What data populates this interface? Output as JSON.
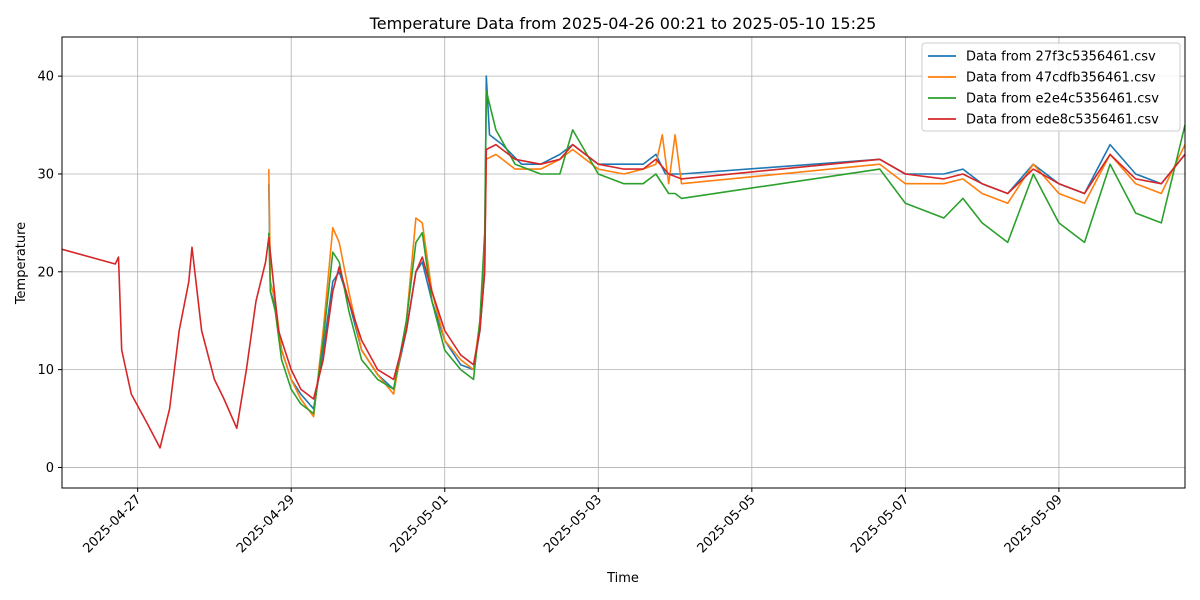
{
  "chart_data": {
    "type": "line",
    "title": "Temperature Data from 2025-04-26 00:21 to 2025-05-10 15:25",
    "xlabel": "Time",
    "ylabel": "Temperature",
    "xlim": [
      "2025-04-26 00:21",
      "2025-05-10 15:25"
    ],
    "ylim": [
      -2.1,
      44
    ],
    "x_ticks": [
      "2025-04-27",
      "2025-04-29",
      "2025-05-01",
      "2025-05-03",
      "2025-05-05",
      "2025-05-07",
      "2025-05-09"
    ],
    "y_ticks": [
      0,
      10,
      20,
      30,
      40
    ],
    "grid": true,
    "legend_position": "top-right",
    "series": [
      {
        "name": "Data from 27f3c5356461.csv",
        "color": "#1f77b4",
        "points": [
          [
            "2025-04-28 17:00",
            29
          ],
          [
            "2025-04-28 17:30",
            18
          ],
          [
            "2025-04-28 19:00",
            16.5
          ],
          [
            "2025-04-28 21:00",
            12
          ],
          [
            "2025-04-29 00:00",
            9
          ],
          [
            "2025-04-29 03:00",
            7.5
          ],
          [
            "2025-04-29 07:00",
            6
          ],
          [
            "2025-04-29 10:00",
            12
          ],
          [
            "2025-04-29 13:00",
            19
          ],
          [
            "2025-04-29 15:00",
            20
          ],
          [
            "2025-04-29 18:00",
            17
          ],
          [
            "2025-04-29 22:00",
            12
          ],
          [
            "2025-04-30 03:00",
            9.5
          ],
          [
            "2025-04-30 08:00",
            8
          ],
          [
            "2025-04-30 12:00",
            14
          ],
          [
            "2025-04-30 15:00",
            20
          ],
          [
            "2025-04-30 17:00",
            21
          ],
          [
            "2025-04-30 20:00",
            17
          ],
          [
            "2025-05-01 00:00",
            13
          ],
          [
            "2025-05-01 05:00",
            10.5
          ],
          [
            "2025-05-01 09:00",
            10
          ],
          [
            "2025-05-01 11:00",
            14
          ],
          [
            "2025-05-01 12:30",
            20
          ],
          [
            "2025-05-01 13:00",
            40
          ],
          [
            "2025-05-01 14:00",
            34
          ],
          [
            "2025-05-01 18:00",
            33
          ],
          [
            "2025-05-02 00:00",
            31
          ],
          [
            "2025-05-02 06:00",
            31
          ],
          [
            "2025-05-02 12:00",
            32
          ],
          [
            "2025-05-02 16:00",
            33
          ],
          [
            "2025-05-03 00:00",
            31
          ],
          [
            "2025-05-03 08:00",
            31
          ],
          [
            "2025-05-03 14:00",
            31
          ],
          [
            "2025-05-03 18:00",
            32
          ],
          [
            "2025-05-03 21:00",
            30
          ],
          [
            "2025-05-04 02:00",
            30
          ],
          [
            "2025-05-06 16:00",
            31.5
          ],
          [
            "2025-05-07 00:00",
            30
          ],
          [
            "2025-05-07 12:00",
            30
          ],
          [
            "2025-05-07 18:00",
            30.5
          ],
          [
            "2025-05-08 00:00",
            29
          ],
          [
            "2025-05-08 08:00",
            28
          ],
          [
            "2025-05-08 16:00",
            31
          ],
          [
            "2025-05-09 00:00",
            29
          ],
          [
            "2025-05-09 08:00",
            28
          ],
          [
            "2025-05-09 16:00",
            33
          ],
          [
            "2025-05-10 00:00",
            30
          ],
          [
            "2025-05-10 08:00",
            29
          ],
          [
            "2025-05-10 15:25",
            32
          ]
        ]
      },
      {
        "name": "Data from 47cdfb356461.csv",
        "color": "#ff7f0e",
        "points": [
          [
            "2025-04-28 17:00",
            30.5
          ],
          [
            "2025-04-28 17:30",
            19
          ],
          [
            "2025-04-28 19:00",
            17
          ],
          [
            "2025-04-28 21:00",
            12
          ],
          [
            "2025-04-29 00:00",
            9
          ],
          [
            "2025-04-29 03:00",
            7
          ],
          [
            "2025-04-29 07:00",
            5.2
          ],
          [
            "2025-04-29 10:00",
            14
          ],
          [
            "2025-04-29 13:00",
            24.5
          ],
          [
            "2025-04-29 15:00",
            23
          ],
          [
            "2025-04-29 18:00",
            18
          ],
          [
            "2025-04-29 22:00",
            12
          ],
          [
            "2025-04-30 03:00",
            9.5
          ],
          [
            "2025-04-30 08:00",
            7.5
          ],
          [
            "2025-04-30 12:00",
            15
          ],
          [
            "2025-04-30 15:00",
            25.5
          ],
          [
            "2025-04-30 17:00",
            25
          ],
          [
            "2025-04-30 20:00",
            18
          ],
          [
            "2025-05-01 00:00",
            13
          ],
          [
            "2025-05-01 05:00",
            11
          ],
          [
            "2025-05-01 09:00",
            10
          ],
          [
            "2025-05-01 11:00",
            15
          ],
          [
            "2025-05-01 12:30",
            22
          ],
          [
            "2025-05-01 13:00",
            31.5
          ],
          [
            "2025-05-01 16:00",
            32
          ],
          [
            "2025-05-01 22:00",
            30.5
          ],
          [
            "2025-05-02 06:00",
            30.5
          ],
          [
            "2025-05-02 12:00",
            31.5
          ],
          [
            "2025-05-02 16:00",
            32.5
          ],
          [
            "2025-05-03 00:00",
            30.5
          ],
          [
            "2025-05-03 08:00",
            30
          ],
          [
            "2025-05-03 14:00",
            30.5
          ],
          [
            "2025-05-03 18:00",
            31
          ],
          [
            "2025-05-03 20:00",
            34
          ],
          [
            "2025-05-03 22:00",
            29
          ],
          [
            "2025-05-04 00:00",
            34
          ],
          [
            "2025-05-04 02:00",
            29
          ],
          [
            "2025-05-06 16:00",
            31
          ],
          [
            "2025-05-07 00:00",
            29
          ],
          [
            "2025-05-07 12:00",
            29
          ],
          [
            "2025-05-07 18:00",
            29.5
          ],
          [
            "2025-05-08 00:00",
            28
          ],
          [
            "2025-05-08 08:00",
            27
          ],
          [
            "2025-05-08 16:00",
            31
          ],
          [
            "2025-05-09 00:00",
            28
          ],
          [
            "2025-05-09 08:00",
            27
          ],
          [
            "2025-05-09 16:00",
            32
          ],
          [
            "2025-05-10 00:00",
            29
          ],
          [
            "2025-05-10 08:00",
            28
          ],
          [
            "2025-05-10 15:25",
            33
          ]
        ]
      },
      {
        "name": "Data from e2e4c5356461.csv",
        "color": "#2ca02c",
        "points": [
          [
            "2025-04-28 17:00",
            24
          ],
          [
            "2025-04-28 17:30",
            18
          ],
          [
            "2025-04-28 19:00",
            16
          ],
          [
            "2025-04-28 21:00",
            11
          ],
          [
            "2025-04-29 00:00",
            8
          ],
          [
            "2025-04-29 03:00",
            6.5
          ],
          [
            "2025-04-29 07:00",
            5.5
          ],
          [
            "2025-04-29 10:00",
            13
          ],
          [
            "2025-04-29 13:00",
            22
          ],
          [
            "2025-04-29 15:00",
            21
          ],
          [
            "2025-04-29 18:00",
            16
          ],
          [
            "2025-04-29 22:00",
            11
          ],
          [
            "2025-04-30 03:00",
            9
          ],
          [
            "2025-04-30 08:00",
            8
          ],
          [
            "2025-04-30 12:00",
            15
          ],
          [
            "2025-04-30 15:00",
            23
          ],
          [
            "2025-04-30 17:00",
            24
          ],
          [
            "2025-04-30 20:00",
            17
          ],
          [
            "2025-05-01 00:00",
            12
          ],
          [
            "2025-05-01 05:00",
            10
          ],
          [
            "2025-05-01 09:00",
            9
          ],
          [
            "2025-05-01 11:00",
            15
          ],
          [
            "2025-05-01 12:30",
            24
          ],
          [
            "2025-05-01 13:00",
            38.5
          ],
          [
            "2025-05-01 16:00",
            34.5
          ],
          [
            "2025-05-01 22:00",
            31
          ],
          [
            "2025-05-02 06:00",
            30
          ],
          [
            "2025-05-02 12:00",
            30
          ],
          [
            "2025-05-02 16:00",
            34.5
          ],
          [
            "2025-05-03 00:00",
            30
          ],
          [
            "2025-05-03 08:00",
            29
          ],
          [
            "2025-05-03 14:00",
            29
          ],
          [
            "2025-05-03 18:00",
            30
          ],
          [
            "2025-05-03 22:00",
            28
          ],
          [
            "2025-05-04 00:00",
            28
          ],
          [
            "2025-05-04 02:00",
            27.5
          ],
          [
            "2025-05-06 16:00",
            30.5
          ],
          [
            "2025-05-07 00:00",
            27
          ],
          [
            "2025-05-07 12:00",
            25.5
          ],
          [
            "2025-05-07 18:00",
            27.5
          ],
          [
            "2025-05-08 00:00",
            25
          ],
          [
            "2025-05-08 08:00",
            23
          ],
          [
            "2025-05-08 16:00",
            30
          ],
          [
            "2025-05-09 00:00",
            25
          ],
          [
            "2025-05-09 08:00",
            23
          ],
          [
            "2025-05-09 16:00",
            31
          ],
          [
            "2025-05-10 00:00",
            26
          ],
          [
            "2025-05-10 08:00",
            25
          ],
          [
            "2025-05-10 15:25",
            35
          ]
        ]
      },
      {
        "name": "Data from ede8c5356461.csv",
        "color": "#d62728",
        "points": [
          [
            "2025-04-26 00:21",
            22.3
          ],
          [
            "2025-04-26 17:00",
            20.8
          ],
          [
            "2025-04-26 18:00",
            21.5
          ],
          [
            "2025-04-26 19:00",
            12
          ],
          [
            "2025-04-26 22:00",
            7.5
          ],
          [
            "2025-04-27 03:00",
            4.5
          ],
          [
            "2025-04-27 07:00",
            2
          ],
          [
            "2025-04-27 10:00",
            6
          ],
          [
            "2025-04-27 13:00",
            14
          ],
          [
            "2025-04-27 16:00",
            19
          ],
          [
            "2025-04-27 17:00",
            22.5
          ],
          [
            "2025-04-27 20:00",
            14
          ],
          [
            "2025-04-28 00:00",
            9
          ],
          [
            "2025-04-28 03:00",
            7
          ],
          [
            "2025-04-28 07:00",
            4
          ],
          [
            "2025-04-28 10:00",
            10
          ],
          [
            "2025-04-28 13:00",
            17
          ],
          [
            "2025-04-28 16:00",
            21
          ],
          [
            "2025-04-28 17:00",
            23.5
          ],
          [
            "2025-04-28 20:00",
            14
          ],
          [
            "2025-04-29 00:00",
            10
          ],
          [
            "2025-04-29 03:00",
            8
          ],
          [
            "2025-04-29 07:00",
            7
          ],
          [
            "2025-04-29 10:00",
            11
          ],
          [
            "2025-04-29 13:00",
            18
          ],
          [
            "2025-04-29 15:00",
            20.5
          ],
          [
            "2025-04-29 18:00",
            17
          ],
          [
            "2025-04-29 22:00",
            13
          ],
          [
            "2025-04-30 03:00",
            10
          ],
          [
            "2025-04-30 08:00",
            9
          ],
          [
            "2025-04-30 12:00",
            14
          ],
          [
            "2025-04-30 15:00",
            20
          ],
          [
            "2025-04-30 17:00",
            21.5
          ],
          [
            "2025-04-30 20:00",
            18
          ],
          [
            "2025-05-01 00:00",
            14
          ],
          [
            "2025-05-01 05:00",
            11.5
          ],
          [
            "2025-05-01 09:00",
            10.5
          ],
          [
            "2025-05-01 11:00",
            14
          ],
          [
            "2025-05-01 12:30",
            20
          ],
          [
            "2025-05-01 13:00",
            32.5
          ],
          [
            "2025-05-01 16:00",
            33
          ],
          [
            "2025-05-01 22:00",
            31.5
          ],
          [
            "2025-05-02 06:00",
            31
          ],
          [
            "2025-05-02 12:00",
            31.5
          ],
          [
            "2025-05-02 16:00",
            33
          ],
          [
            "2025-05-03 00:00",
            31
          ],
          [
            "2025-05-03 08:00",
            30.5
          ],
          [
            "2025-05-03 14:00",
            30.5
          ],
          [
            "2025-05-03 18:00",
            31.5
          ],
          [
            "2025-05-03 22:00",
            30
          ],
          [
            "2025-05-04 02:00",
            29.5
          ],
          [
            "2025-05-06 16:00",
            31.5
          ],
          [
            "2025-05-07 00:00",
            30
          ],
          [
            "2025-05-07 12:00",
            29.5
          ],
          [
            "2025-05-07 18:00",
            30
          ],
          [
            "2025-05-08 00:00",
            29
          ],
          [
            "2025-05-08 08:00",
            28
          ],
          [
            "2025-05-08 16:00",
            30.5
          ],
          [
            "2025-05-09 00:00",
            29
          ],
          [
            "2025-05-09 08:00",
            28
          ],
          [
            "2025-05-09 16:00",
            32
          ],
          [
            "2025-05-10 00:00",
            29.5
          ],
          [
            "2025-05-10 08:00",
            29
          ],
          [
            "2025-05-10 15:25",
            32
          ]
        ]
      }
    ]
  }
}
